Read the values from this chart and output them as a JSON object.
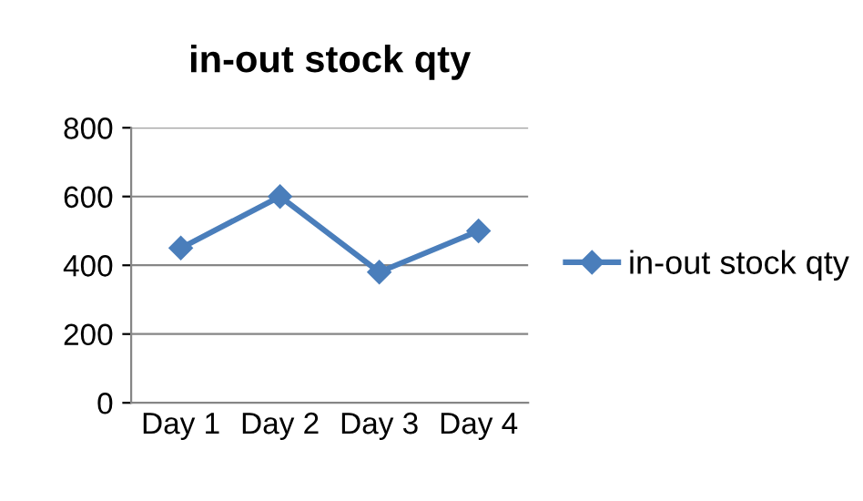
{
  "chart_data": {
    "type": "line",
    "title": "in-out stock qty",
    "categories": [
      "Day 1",
      "Day 2",
      "Day 3",
      "Day 4"
    ],
    "series": [
      {
        "name": "in-out stock qty",
        "color": "#4a7ebb",
        "values": [
          450,
          600,
          380,
          500
        ]
      }
    ],
    "ylim": [
      0,
      800
    ],
    "yticks": [
      0,
      200,
      400,
      600,
      800
    ],
    "grid": "y",
    "legend": "right",
    "marker": "diamond",
    "line_style": "solid"
  }
}
